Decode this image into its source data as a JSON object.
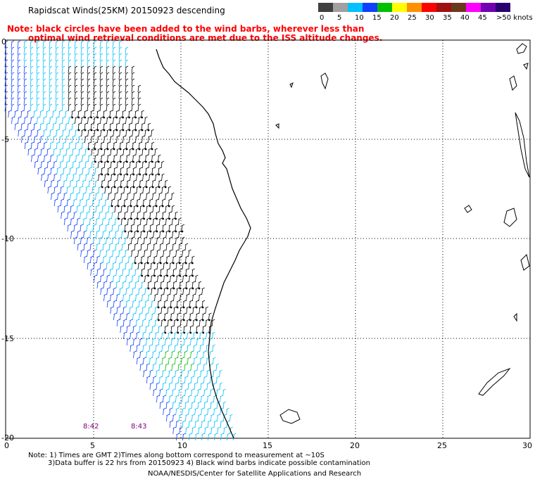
{
  "header": {
    "title": "Rapidscat Winds(25KM) 20150923 descending",
    "note_line1": "Note: black circles have been added to the wind barbs, wherever less than",
    "note_line2": "optimal wind retrieval conditions are met due to the ISS altitude changes."
  },
  "legend": {
    "unit": "knots",
    "bins": [
      {
        "label": "0",
        "color": "#404040"
      },
      {
        "label": "5",
        "color": "#a0a0a0"
      },
      {
        "label": "10",
        "color": "#00c0ff"
      },
      {
        "label": "15",
        "color": "#1040ff"
      },
      {
        "label": "20",
        "color": "#00c000"
      },
      {
        "label": "25",
        "color": "#ffff00"
      },
      {
        "label": "30",
        "color": "#ff9000"
      },
      {
        "label": "35",
        "color": "#ff0000"
      },
      {
        "label": "40",
        "color": "#a01010"
      },
      {
        "label": "45",
        "color": "#6a3a1a"
      },
      {
        "label": ">50",
        "color": "#ff00ff"
      },
      {
        "label": "",
        "color": "#7000b0"
      },
      {
        "label": "",
        "color": "#280070"
      }
    ],
    "last_label": ">50 knots"
  },
  "axes": {
    "x_ticks": [
      "0",
      "5",
      "10",
      "15",
      "20",
      "25",
      "30"
    ],
    "y_ticks": [
      "0",
      "-5",
      "-10",
      "-15",
      "-20"
    ]
  },
  "time_labels": [
    "8:42",
    "8:43"
  ],
  "footer": {
    "line1": "Note: 1) Times are GMT 2)Times along bottom correspond to measurement at ~10S",
    "line2": "3)Data buffer is 22 hrs from 20150923 4) Black wind barbs indicate possible contamination",
    "credit": "NOAA/NESDIS/Center for Satellite Applications and Research"
  },
  "colors": {
    "light_blue": "#00c0ff",
    "blue": "#1040ff",
    "green": "#00c000",
    "black": "#000000",
    "grid": "#000000",
    "note": "#ff0000"
  }
}
